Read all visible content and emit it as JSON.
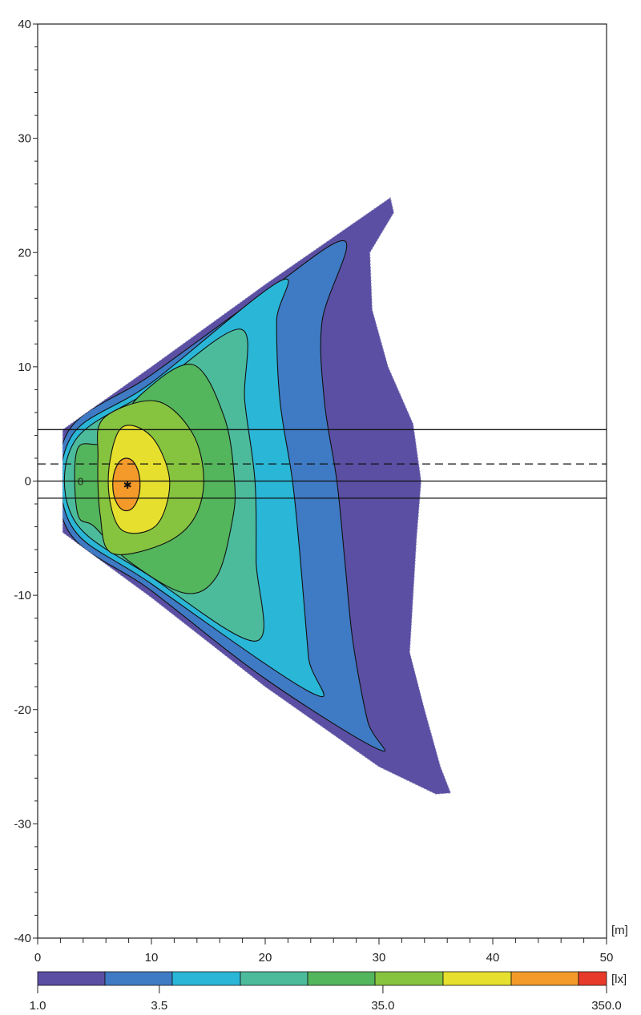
{
  "chart_data": {
    "type": "heatmap",
    "subtype": "isolux contour plot",
    "xlim": [
      0,
      50
    ],
    "ylim": [
      -40,
      40
    ],
    "x_ticks": [
      0,
      10,
      20,
      30,
      40,
      50
    ],
    "y_ticks": [
      -40,
      -30,
      -20,
      -10,
      0,
      10,
      20,
      30,
      40
    ],
    "x_unit": "[m]",
    "colorbar": {
      "unit": "[lx]",
      "scale": "log",
      "tick_labels": [
        "1.0",
        "3.5",
        "35.0",
        "350.0"
      ],
      "tick_values": [
        1.0,
        3.5,
        35.0,
        350.0
      ],
      "segment_colors": [
        "#5a4fa3",
        "#3f7ac4",
        "#2ab6d6",
        "#4cbb9c",
        "#53b55c",
        "#86c33f",
        "#e6df2e",
        "#f39a2a",
        "#e83a2a"
      ]
    },
    "outer_boundary": [
      [
        2.2,
        4.5
      ],
      [
        10,
        10
      ],
      [
        20,
        17.2
      ],
      [
        31,
        24.8
      ],
      [
        31.3,
        23.5
      ],
      [
        29.2,
        20
      ],
      [
        29.4,
        15
      ],
      [
        30.8,
        10
      ],
      [
        33,
        5
      ],
      [
        33.7,
        0
      ],
      [
        33.3,
        -5
      ],
      [
        33,
        -10
      ],
      [
        32.7,
        -15
      ],
      [
        34,
        -20
      ],
      [
        35.4,
        -25
      ],
      [
        36.3,
        -27.3
      ],
      [
        35,
        -27.4
      ],
      [
        30,
        -25
      ],
      [
        20,
        -18
      ],
      [
        10,
        -10.2
      ],
      [
        2.2,
        -4.5
      ]
    ],
    "contour_regions": [
      {
        "color": "#3f7ac4",
        "points": [
          [
            2.6,
            4.2
          ],
          [
            10,
            9.3
          ],
          [
            20,
            16.5
          ],
          [
            27,
            21
          ],
          [
            25,
            14
          ],
          [
            25.2,
            7
          ],
          [
            26.3,
            0
          ],
          [
            27,
            -7
          ],
          [
            27.7,
            -14
          ],
          [
            29,
            -21
          ],
          [
            30,
            -23.5
          ],
          [
            20,
            -17.3
          ],
          [
            10,
            -9.6
          ],
          [
            2.6,
            -4.2
          ]
        ]
      },
      {
        "color": "#2ab6d6",
        "points": [
          [
            2.9,
            3.8
          ],
          [
            10,
            8.6
          ],
          [
            21.3,
            17.5
          ],
          [
            21,
            14
          ],
          [
            21.3,
            7
          ],
          [
            22.4,
            0
          ],
          [
            23.1,
            -7
          ],
          [
            23.8,
            -15.4
          ],
          [
            24.2,
            -18.6
          ],
          [
            10,
            -9
          ],
          [
            2.9,
            -3.8
          ]
        ]
      },
      {
        "color": "#4cbb9c",
        "points": [
          [
            3.2,
            3.4
          ],
          [
            10,
            8
          ],
          [
            17.8,
            13.3
          ],
          [
            18.2,
            7
          ],
          [
            19.1,
            0
          ],
          [
            19.2,
            -7
          ],
          [
            19.2,
            -14
          ],
          [
            10,
            -8.4
          ],
          [
            3.2,
            -3.4
          ]
        ]
      },
      {
        "color": "#53b55c",
        "points": [
          [
            3.5,
            2.8
          ],
          [
            6,
            3.5
          ],
          [
            9,
            7.5
          ],
          [
            13.6,
            10.2
          ],
          [
            16.4,
            5.6
          ],
          [
            17.3,
            0
          ],
          [
            17.1,
            -3.5
          ],
          [
            15.7,
            -8.4
          ],
          [
            12.9,
            -9.8
          ],
          [
            8,
            -7
          ],
          [
            5,
            -4
          ],
          [
            3.5,
            -2.8
          ]
        ]
      },
      {
        "color": "#86c33f",
        "points": [
          [
            5.8,
            5.5
          ],
          [
            10.4,
            7
          ],
          [
            13.6,
            4.2
          ],
          [
            14.6,
            0
          ],
          [
            13.6,
            -3.5
          ],
          [
            10.8,
            -5.6
          ],
          [
            6.5,
            -6.3
          ],
          [
            5.5,
            -3
          ],
          [
            5.3,
            2
          ]
        ]
      },
      {
        "color": "#e6df2e",
        "points": [
          [
            7.3,
            4.6
          ],
          [
            10,
            3.9
          ],
          [
            11.6,
            0
          ],
          [
            10.4,
            -3.9
          ],
          [
            7.3,
            -4.2
          ],
          [
            6.2,
            0
          ]
        ]
      }
    ],
    "peak": {
      "x": 7.8,
      "y": -0.3,
      "color": "#f39a2a",
      "rx": 1.2,
      "ry": 2.3
    },
    "source_marker": {
      "label": "0",
      "x": 3.8,
      "y": 0
    },
    "horizontal_lines": [
      {
        "y": 4.5,
        "style": "solid"
      },
      {
        "y": 1.5,
        "style": "dashed"
      },
      {
        "y": 0,
        "style": "solid"
      },
      {
        "y": -1.5,
        "style": "solid"
      }
    ]
  }
}
